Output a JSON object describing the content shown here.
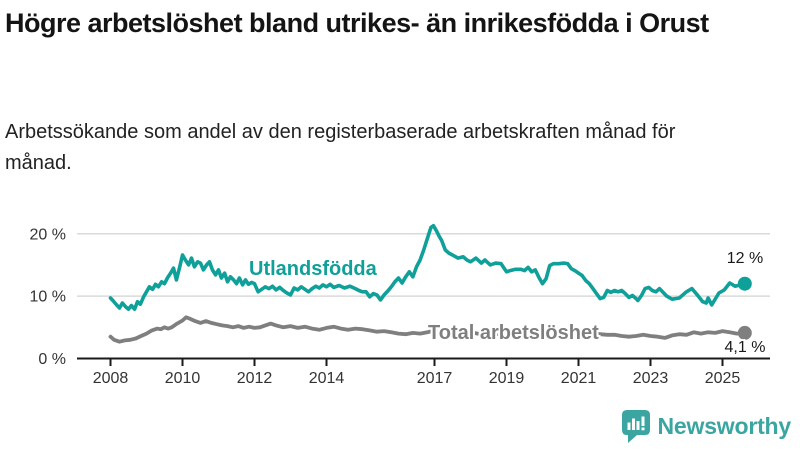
{
  "header": {
    "title": "Högre arbetslöshet bland utrikes- än inrikesfödda i Orust",
    "subtitle": "Arbetssökande som andel av den registerbaserade arbetskraften månad för månad."
  },
  "colors": {
    "accent_teal": "#10a09a",
    "series_gray": "#7f7f7f",
    "grid": "#d9d9d9",
    "axis": "#1a1a1a",
    "tick_text": "#333333",
    "logo_teal": "#3aa5a1"
  },
  "branding": {
    "logo_text": "Newsworthy"
  },
  "chart_data": {
    "type": "line",
    "unit": "%",
    "grid": "horizontal gridlines at 10 and 20",
    "legend_position": "inline labels on lines",
    "xlim": [
      2008,
      2025.8
    ],
    "ylim": [
      0,
      22
    ],
    "x_ticks": [
      2008,
      2010,
      2012,
      2014,
      2017,
      2019,
      2021,
      2023,
      2025
    ],
    "x_tick_labels": [
      "2008",
      "2010",
      "2012",
      "2014",
      "2017",
      "2019",
      "2021",
      "2023",
      "2025"
    ],
    "y_ticks": [
      0,
      10,
      20
    ],
    "y_tick_labels": [
      "0 %",
      "10 %",
      "20 %"
    ],
    "series": [
      {
        "name": "Utlandsfödda",
        "color": "#10a09a",
        "end_value": 12.0,
        "end_label": "12 %",
        "points": [
          [
            2008.0,
            9.7
          ],
          [
            2008.08,
            9.2
          ],
          [
            2008.17,
            8.6
          ],
          [
            2008.25,
            8.1
          ],
          [
            2008.33,
            8.9
          ],
          [
            2008.42,
            8.3
          ],
          [
            2008.5,
            7.9
          ],
          [
            2008.58,
            8.5
          ],
          [
            2008.67,
            7.9
          ],
          [
            2008.75,
            9.1
          ],
          [
            2008.83,
            8.7
          ],
          [
            2008.92,
            9.9
          ],
          [
            2009.0,
            10.7
          ],
          [
            2009.08,
            11.5
          ],
          [
            2009.17,
            11.1
          ],
          [
            2009.25,
            11.9
          ],
          [
            2009.33,
            11.5
          ],
          [
            2009.42,
            12.3
          ],
          [
            2009.5,
            12.0
          ],
          [
            2009.58,
            12.9
          ],
          [
            2009.67,
            13.7
          ],
          [
            2009.75,
            14.5
          ],
          [
            2009.83,
            12.6
          ],
          [
            2009.92,
            14.6
          ],
          [
            2010.0,
            16.6
          ],
          [
            2010.08,
            15.8
          ],
          [
            2010.17,
            15.0
          ],
          [
            2010.25,
            16.1
          ],
          [
            2010.33,
            14.7
          ],
          [
            2010.42,
            15.5
          ],
          [
            2010.5,
            15.3
          ],
          [
            2010.58,
            14.2
          ],
          [
            2010.67,
            15.0
          ],
          [
            2010.75,
            15.5
          ],
          [
            2010.83,
            14.2
          ],
          [
            2010.92,
            13.4
          ],
          [
            2011.0,
            14.2
          ],
          [
            2011.08,
            12.9
          ],
          [
            2011.17,
            13.7
          ],
          [
            2011.25,
            12.3
          ],
          [
            2011.33,
            13.1
          ],
          [
            2011.42,
            12.6
          ],
          [
            2011.5,
            12.0
          ],
          [
            2011.58,
            12.9
          ],
          [
            2011.67,
            11.8
          ],
          [
            2011.75,
            12.6
          ],
          [
            2011.83,
            11.9
          ],
          [
            2011.92,
            12.2
          ],
          [
            2012.0,
            12.0
          ],
          [
            2012.1,
            10.7
          ],
          [
            2012.2,
            11.1
          ],
          [
            2012.3,
            11.5
          ],
          [
            2012.4,
            11.2
          ],
          [
            2012.5,
            11.6
          ],
          [
            2012.6,
            11.0
          ],
          [
            2012.7,
            11.4
          ],
          [
            2012.8,
            10.9
          ],
          [
            2012.9,
            10.5
          ],
          [
            2013.0,
            10.2
          ],
          [
            2013.1,
            11.3
          ],
          [
            2013.2,
            11.0
          ],
          [
            2013.3,
            11.5
          ],
          [
            2013.4,
            11.1
          ],
          [
            2013.5,
            10.7
          ],
          [
            2013.6,
            11.2
          ],
          [
            2013.7,
            11.6
          ],
          [
            2013.8,
            11.3
          ],
          [
            2013.9,
            11.8
          ],
          [
            2014.0,
            11.5
          ],
          [
            2014.1,
            11.9
          ],
          [
            2014.2,
            11.4
          ],
          [
            2014.35,
            11.7
          ],
          [
            2014.5,
            11.3
          ],
          [
            2014.65,
            11.6
          ],
          [
            2014.8,
            11.2
          ],
          [
            2014.9,
            10.9
          ],
          [
            2015.0,
            10.7
          ],
          [
            2015.1,
            10.7
          ],
          [
            2015.2,
            9.9
          ],
          [
            2015.3,
            10.4
          ],
          [
            2015.4,
            10.2
          ],
          [
            2015.5,
            9.4
          ],
          [
            2015.6,
            10.2
          ],
          [
            2015.7,
            10.8
          ],
          [
            2015.8,
            11.5
          ],
          [
            2015.9,
            12.3
          ],
          [
            2016.0,
            12.9
          ],
          [
            2016.1,
            12.1
          ],
          [
            2016.2,
            13.1
          ],
          [
            2016.3,
            13.9
          ],
          [
            2016.4,
            13.1
          ],
          [
            2016.5,
            14.7
          ],
          [
            2016.6,
            15.8
          ],
          [
            2016.7,
            17.4
          ],
          [
            2016.8,
            19.2
          ],
          [
            2016.9,
            21.0
          ],
          [
            2016.97,
            21.3
          ],
          [
            2017.05,
            20.5
          ],
          [
            2017.12,
            19.7
          ],
          [
            2017.2,
            18.9
          ],
          [
            2017.3,
            17.4
          ],
          [
            2017.4,
            16.9
          ],
          [
            2017.5,
            16.6
          ],
          [
            2017.65,
            16.1
          ],
          [
            2017.8,
            16.3
          ],
          [
            2017.9,
            15.8
          ],
          [
            2018.0,
            15.5
          ],
          [
            2018.15,
            16.1
          ],
          [
            2018.3,
            15.3
          ],
          [
            2018.4,
            15.8
          ],
          [
            2018.55,
            15.0
          ],
          [
            2018.7,
            15.3
          ],
          [
            2018.85,
            15.2
          ],
          [
            2019.0,
            13.9
          ],
          [
            2019.1,
            14.1
          ],
          [
            2019.25,
            14.3
          ],
          [
            2019.4,
            14.3
          ],
          [
            2019.5,
            14.1
          ],
          [
            2019.6,
            14.6
          ],
          [
            2019.7,
            13.9
          ],
          [
            2019.8,
            14.2
          ],
          [
            2019.9,
            13.0
          ],
          [
            2020.0,
            12.0
          ],
          [
            2020.1,
            12.8
          ],
          [
            2020.2,
            14.9
          ],
          [
            2020.3,
            15.2
          ],
          [
            2020.45,
            15.2
          ],
          [
            2020.6,
            15.3
          ],
          [
            2020.7,
            15.2
          ],
          [
            2020.8,
            14.4
          ],
          [
            2020.9,
            14.1
          ],
          [
            2021.0,
            13.7
          ],
          [
            2021.1,
            13.3
          ],
          [
            2021.2,
            12.5
          ],
          [
            2021.3,
            12.0
          ],
          [
            2021.4,
            11.2
          ],
          [
            2021.5,
            10.4
          ],
          [
            2021.6,
            9.6
          ],
          [
            2021.7,
            9.8
          ],
          [
            2021.8,
            10.9
          ],
          [
            2021.9,
            10.6
          ],
          [
            2022.0,
            10.9
          ],
          [
            2022.1,
            10.7
          ],
          [
            2022.2,
            10.9
          ],
          [
            2022.3,
            10.4
          ],
          [
            2022.4,
            9.8
          ],
          [
            2022.5,
            10.1
          ],
          [
            2022.6,
            9.6
          ],
          [
            2022.65,
            9.3
          ],
          [
            2022.75,
            10.1
          ],
          [
            2022.85,
            11.2
          ],
          [
            2022.95,
            11.4
          ],
          [
            2023.05,
            10.9
          ],
          [
            2023.15,
            10.7
          ],
          [
            2023.25,
            11.2
          ],
          [
            2023.45,
            10.0
          ],
          [
            2023.6,
            9.5
          ],
          [
            2023.8,
            9.7
          ],
          [
            2024.0,
            10.7
          ],
          [
            2024.15,
            11.2
          ],
          [
            2024.3,
            10.2
          ],
          [
            2024.45,
            9.1
          ],
          [
            2024.55,
            8.9
          ],
          [
            2024.6,
            9.7
          ],
          [
            2024.7,
            8.6
          ],
          [
            2024.9,
            10.5
          ],
          [
            2025.05,
            11.0
          ],
          [
            2025.2,
            12.1
          ],
          [
            2025.35,
            11.6
          ],
          [
            2025.5,
            11.8
          ],
          [
            2025.62,
            12.0
          ]
        ]
      },
      {
        "name": "Total arbetslöshet",
        "color": "#7f7f7f",
        "end_value": 4.1,
        "end_label": "4,1 %",
        "points": [
          [
            2008.0,
            3.5
          ],
          [
            2008.1,
            3.0
          ],
          [
            2008.25,
            2.7
          ],
          [
            2008.4,
            2.9
          ],
          [
            2008.55,
            3.0
          ],
          [
            2008.7,
            3.2
          ],
          [
            2008.85,
            3.6
          ],
          [
            2009.0,
            4.0
          ],
          [
            2009.15,
            4.5
          ],
          [
            2009.3,
            4.8
          ],
          [
            2009.4,
            4.7
          ],
          [
            2009.5,
            5.0
          ],
          [
            2009.6,
            4.8
          ],
          [
            2009.7,
            5.0
          ],
          [
            2009.85,
            5.6
          ],
          [
            2010.0,
            6.1
          ],
          [
            2010.1,
            6.6
          ],
          [
            2010.2,
            6.4
          ],
          [
            2010.35,
            6.0
          ],
          [
            2010.5,
            5.7
          ],
          [
            2010.65,
            6.0
          ],
          [
            2010.8,
            5.7
          ],
          [
            2010.95,
            5.5
          ],
          [
            2011.1,
            5.3
          ],
          [
            2011.25,
            5.2
          ],
          [
            2011.4,
            5.0
          ],
          [
            2011.55,
            5.2
          ],
          [
            2011.7,
            4.9
          ],
          [
            2011.85,
            5.1
          ],
          [
            2012.0,
            4.9
          ],
          [
            2012.15,
            5.0
          ],
          [
            2012.3,
            5.3
          ],
          [
            2012.45,
            5.6
          ],
          [
            2012.6,
            5.3
          ],
          [
            2012.8,
            5.0
          ],
          [
            2013.0,
            5.2
          ],
          [
            2013.2,
            4.9
          ],
          [
            2013.4,
            5.1
          ],
          [
            2013.6,
            4.8
          ],
          [
            2013.8,
            4.6
          ],
          [
            2014.0,
            4.9
          ],
          [
            2014.2,
            5.1
          ],
          [
            2014.4,
            4.8
          ],
          [
            2014.6,
            4.6
          ],
          [
            2014.8,
            4.8
          ],
          [
            2015.0,
            4.7
          ],
          [
            2015.2,
            4.5
          ],
          [
            2015.4,
            4.3
          ],
          [
            2015.6,
            4.4
          ],
          [
            2015.8,
            4.2
          ],
          [
            2016.0,
            4.0
          ],
          [
            2016.2,
            3.9
          ],
          [
            2016.4,
            4.1
          ],
          [
            2016.6,
            4.0
          ],
          [
            2016.8,
            4.2
          ],
          [
            2017.0,
            4.5
          ],
          [
            2017.2,
            4.4
          ],
          [
            2017.4,
            4.3
          ],
          [
            2017.6,
            4.2
          ],
          [
            2017.8,
            4.1
          ],
          [
            2018.0,
            4.2
          ],
          [
            2018.2,
            4.0
          ],
          [
            2018.4,
            3.9
          ],
          [
            2018.6,
            4.0
          ],
          [
            2018.8,
            3.9
          ],
          [
            2019.0,
            4.0
          ],
          [
            2019.2,
            3.9
          ],
          [
            2019.4,
            3.8
          ],
          [
            2019.6,
            3.9
          ],
          [
            2019.8,
            3.7
          ],
          [
            2020.0,
            3.8
          ],
          [
            2020.2,
            4.4
          ],
          [
            2020.4,
            4.7
          ],
          [
            2020.6,
            4.8
          ],
          [
            2020.8,
            4.6
          ],
          [
            2021.0,
            4.5
          ],
          [
            2021.2,
            4.3
          ],
          [
            2021.4,
            4.1
          ],
          [
            2021.6,
            3.9
          ],
          [
            2021.8,
            3.8
          ],
          [
            2022.0,
            3.8
          ],
          [
            2022.2,
            3.6
          ],
          [
            2022.4,
            3.5
          ],
          [
            2022.6,
            3.6
          ],
          [
            2022.8,
            3.8
          ],
          [
            2023.0,
            3.6
          ],
          [
            2023.2,
            3.5
          ],
          [
            2023.4,
            3.3
          ],
          [
            2023.6,
            3.7
          ],
          [
            2023.8,
            3.9
          ],
          [
            2024.0,
            3.8
          ],
          [
            2024.2,
            4.2
          ],
          [
            2024.4,
            4.0
          ],
          [
            2024.6,
            4.2
          ],
          [
            2024.8,
            4.1
          ],
          [
            2025.0,
            4.4
          ],
          [
            2025.2,
            4.2
          ],
          [
            2025.4,
            4.0
          ],
          [
            2025.62,
            4.1
          ]
        ]
      }
    ]
  }
}
